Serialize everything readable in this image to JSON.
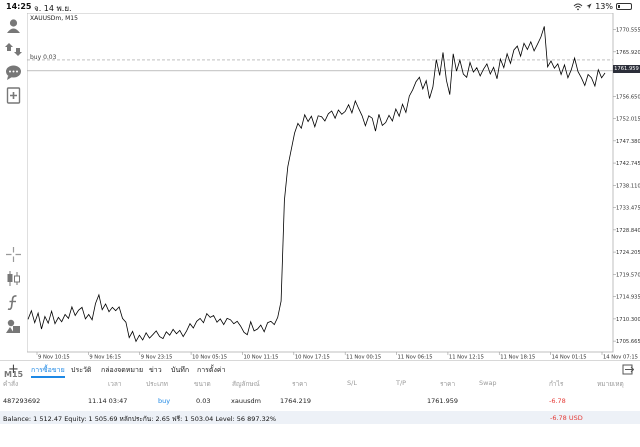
{
  "status_bar": {
    "time": "14:25",
    "date": "จ. 14 พ.ย.",
    "battery": "13%"
  },
  "toolbar": {
    "items": [
      {
        "name": "account-icon"
      },
      {
        "name": "trade-icon"
      },
      {
        "name": "chat-icon"
      },
      {
        "name": "new-order-icon"
      },
      {
        "name": "crosshair-icon"
      },
      {
        "name": "candlestick-icon"
      },
      {
        "name": "indicator-icon"
      },
      {
        "name": "objects-icon"
      }
    ],
    "timeframe": "M15"
  },
  "chart": {
    "symbol_label": "XAUUSDm, M15",
    "buy_line_label": "buy 0.03",
    "current_price": "1761.959"
  },
  "chart_data": {
    "type": "line",
    "series": [
      {
        "values": [
          1710.2,
          1712.0,
          1709.5,
          1711.5,
          1708.2,
          1710.8,
          1709.4,
          1711.9,
          1709.3,
          1710.6,
          1709.7,
          1711.2,
          1710.4,
          1712.8,
          1711.0,
          1712.1,
          1712.7,
          1710.3,
          1711.2,
          1710.1,
          1713.5,
          1715.3,
          1712.2,
          1713.4,
          1711.8,
          1712.7,
          1712.0,
          1712.8,
          1710.4,
          1709.6,
          1706.4,
          1707.7,
          1705.6,
          1706.9,
          1705.9,
          1707.4,
          1706.3,
          1707.0,
          1707.8,
          1706.6,
          1706.2,
          1707.6,
          1706.9,
          1708.1,
          1707.2,
          1707.9,
          1706.6,
          1707.8,
          1709.3,
          1708.4,
          1709.8,
          1710.4,
          1709.5,
          1711.4,
          1710.6,
          1711.0,
          1709.6,
          1710.3,
          1709.1,
          1710.4,
          1710.1,
          1709.3,
          1709.8,
          1708.8,
          1707.5,
          1707.0,
          1709.7,
          1707.8,
          1708.2,
          1709.0,
          1707.6,
          1709.5,
          1709.8,
          1709.1,
          1710.6,
          1714.0,
          1735.0,
          1742.0,
          1745.5,
          1749.0,
          1751.0,
          1750.0,
          1752.8,
          1751.4,
          1752.5,
          1750.3,
          1752.6,
          1752.4,
          1751.5,
          1753.0,
          1753.6,
          1752.1,
          1753.8,
          1752.9,
          1753.5,
          1754.9,
          1753.2,
          1755.7,
          1754.1,
          1752.6,
          1750.5,
          1752.6,
          1752.1,
          1749.4,
          1752.9,
          1750.6,
          1751.2,
          1752.7,
          1751.5,
          1754.0,
          1752.5,
          1755.0,
          1753.3,
          1756.7,
          1758.0,
          1759.7,
          1760.6,
          1758.2,
          1759.9,
          1756.2,
          1758.6,
          1764.3,
          1761.0,
          1765.8,
          1760.0,
          1757.0,
          1765.5,
          1761.9,
          1764.2,
          1761.3,
          1760.6,
          1763.7,
          1761.7,
          1762.6,
          1760.9,
          1762.3,
          1763.4,
          1761.3,
          1762.7,
          1760.3,
          1764.4,
          1762.6,
          1765.5,
          1763.5,
          1766.3,
          1767.1,
          1765.0,
          1767.7,
          1766.4,
          1768.0,
          1766.1,
          1767.5,
          1769.0,
          1771.2,
          1762.8,
          1764.0,
          1762.5,
          1763.4,
          1761.2,
          1763.2,
          1760.5,
          1762.2,
          1764.6,
          1761.8,
          1760.5,
          1758.9,
          1761.2,
          1760.5,
          1758.8,
          1762.2,
          1760.5,
          1761.5
        ]
      }
    ],
    "x_tick_labels": [
      "9 Nov 10:15",
      "9 Nov 16:15",
      "9 Nov 23:15",
      "10 Nov 05:15",
      "10 Nov 11:15",
      "10 Nov 17:15",
      "11 Nov 00:15",
      "11 Nov 06:15",
      "11 Nov 12:15",
      "11 Nov 18:15",
      "14 Nov 01:15",
      "14 Nov 07:15"
    ],
    "y_tick_labels": [
      "1770.555",
      "1765.920",
      "1761.959",
      "1756.650",
      "1752.015",
      "1747.380",
      "1742.745",
      "1738.110",
      "1733.475",
      "1728.840",
      "1724.205",
      "1719.570",
      "1714.935",
      "1710.300",
      "1705.665"
    ],
    "y_tick_values": [
      1770.555,
      1765.92,
      1761.959,
      1756.65,
      1752.015,
      1747.38,
      1742.745,
      1738.11,
      1733.475,
      1728.84,
      1724.205,
      1719.57,
      1714.935,
      1710.3,
      1705.665
    ],
    "ylim": [
      1703.4,
      1774.0
    ],
    "buy_level": 1764.219,
    "current_price": 1761.959,
    "grid": false
  },
  "tabs": {
    "items": [
      "การซื้อขาย",
      "ประวัติ",
      "กล่องจดหมาย",
      "ข่าว",
      "บันทึก",
      "การตั้งค่า"
    ],
    "active_index": 0
  },
  "table": {
    "headers": [
      "คำสั่ง",
      "เวลา",
      "ประเภท",
      "ขนาด",
      "สัญลักษณ์",
      "ราคา",
      "S/L",
      "T/P",
      "ราคา",
      "Swap",
      "กำไร",
      "หมายเหตุ"
    ],
    "rows": [
      {
        "order": "487293692",
        "time": "11.14 03:47",
        "type": "buy",
        "size": "0.03",
        "symbol": "xauusdm",
        "open_price": "1764.219",
        "sl": "",
        "tp": "",
        "price": "1761.959",
        "swap": "",
        "profit": "-6.78",
        "comment": ""
      }
    ]
  },
  "balance": {
    "text": "Balance: 1 512.47 Equity: 1 505.69 หลักประกัน: 2.65 ฟรี: 1 503.04 Level: 56 897.32%",
    "profit": "-6.78 USD"
  },
  "colors": {
    "accent": "#1e88e5",
    "loss": "#e53935",
    "price_badge": "#2c2f3a",
    "line": "#000000"
  }
}
